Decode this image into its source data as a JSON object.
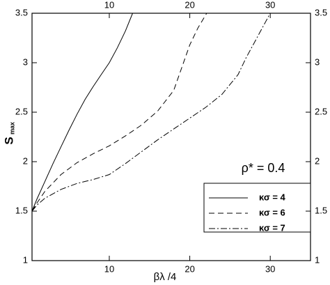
{
  "chart_data": {
    "type": "line",
    "xlabel": "βλ /4",
    "ylabel": "S",
    "ylabel_sub": "max",
    "annotation": "ρ* = 0.4",
    "xlim": [
      0.4,
      35
    ],
    "ylim": [
      1,
      3.5
    ],
    "xticks": [
      10,
      20,
      30
    ],
    "yticks": [
      1,
      1.5,
      2,
      2.5,
      3,
      3.5
    ],
    "legend": "lower right",
    "series": [
      {
        "name": "κσ = 4",
        "color": "#000000",
        "dash": "solid",
        "x": [
          0.4,
          1,
          2,
          3,
          4,
          5,
          6,
          7,
          8,
          9,
          10,
          11,
          12,
          12.9
        ],
        "values": [
          1.5,
          1.62,
          1.8,
          1.98,
          2.15,
          2.32,
          2.48,
          2.63,
          2.76,
          2.88,
          3.0,
          3.15,
          3.32,
          3.5
        ]
      },
      {
        "name": "κσ = 6",
        "color": "#000000",
        "dash": "dashed",
        "x": [
          0.4,
          1,
          2,
          4,
          6,
          8,
          10,
          12,
          14,
          16,
          18,
          20,
          21,
          22.1
        ],
        "values": [
          1.5,
          1.58,
          1.7,
          1.87,
          1.99,
          2.08,
          2.16,
          2.26,
          2.37,
          2.51,
          2.72,
          3.18,
          3.35,
          3.5
        ]
      },
      {
        "name": "κσ = 7",
        "color": "#000000",
        "dash": "dashdot",
        "x": [
          0.4,
          1,
          2,
          4,
          6,
          8,
          10,
          12,
          14,
          16,
          18,
          20,
          22,
          24,
          26,
          27,
          28,
          29,
          30
        ],
        "values": [
          1.5,
          1.56,
          1.63,
          1.72,
          1.78,
          1.82,
          1.87,
          1.98,
          2.1,
          2.22,
          2.33,
          2.44,
          2.55,
          2.68,
          2.88,
          3.05,
          3.2,
          3.35,
          3.5
        ]
      }
    ]
  }
}
